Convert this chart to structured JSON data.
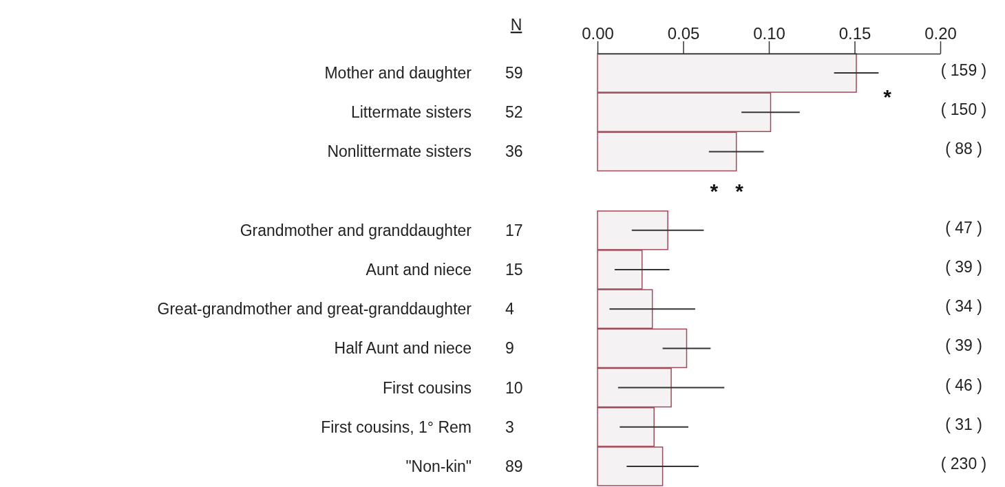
{
  "chart_data": {
    "type": "bar",
    "orientation": "horizontal",
    "categories": [
      "Mother and daughter",
      "Littermate sisters",
      "Nonlittermate sisters",
      null,
      "Grandmother and granddaughter",
      "Aunt and niece",
      "Great-grandmother and great-granddaughter",
      "Half Aunt and niece",
      "First cousins",
      "First cousins, 1° Rem",
      "\"Non-kin\""
    ],
    "series": [
      {
        "axis": "x2",
        "color": "#f4f2f2",
        "values": [
          0.151,
          0.101,
          0.081,
          null,
          0.041,
          0.026,
          0.032,
          0.052,
          0.043,
          0.033,
          0.038
        ],
        "errors": [
          0.013,
          0.017,
          0.016,
          null,
          0.021,
          0.016,
          0.025,
          0.014,
          0.031,
          0.02,
          0.021
        ]
      }
    ],
    "x2lim": [
      0,
      0.2
    ],
    "x2ticks": [
      {
        "value": 0,
        "label": "0.00"
      },
      {
        "value": 0.05,
        "label": "0.05"
      },
      {
        "value": 0.1,
        "label": "0.10"
      },
      {
        "value": 0.15,
        "label": "0.15"
      },
      {
        "value": 0.2,
        "label": "0.20"
      }
    ],
    "annotations": [
      "N",
      "59",
      "52",
      "36",
      "17",
      "15",
      "4",
      "9",
      "10",
      "3",
      "89",
      "( 159 )",
      "( 150 )",
      "( 88 )",
      "( 47 )",
      "( 39 )",
      "( 34 )",
      "( 39 )",
      "( 46 )",
      "( 31 )",
      "( 230 )",
      "*",
      "* *"
    ]
  }
}
